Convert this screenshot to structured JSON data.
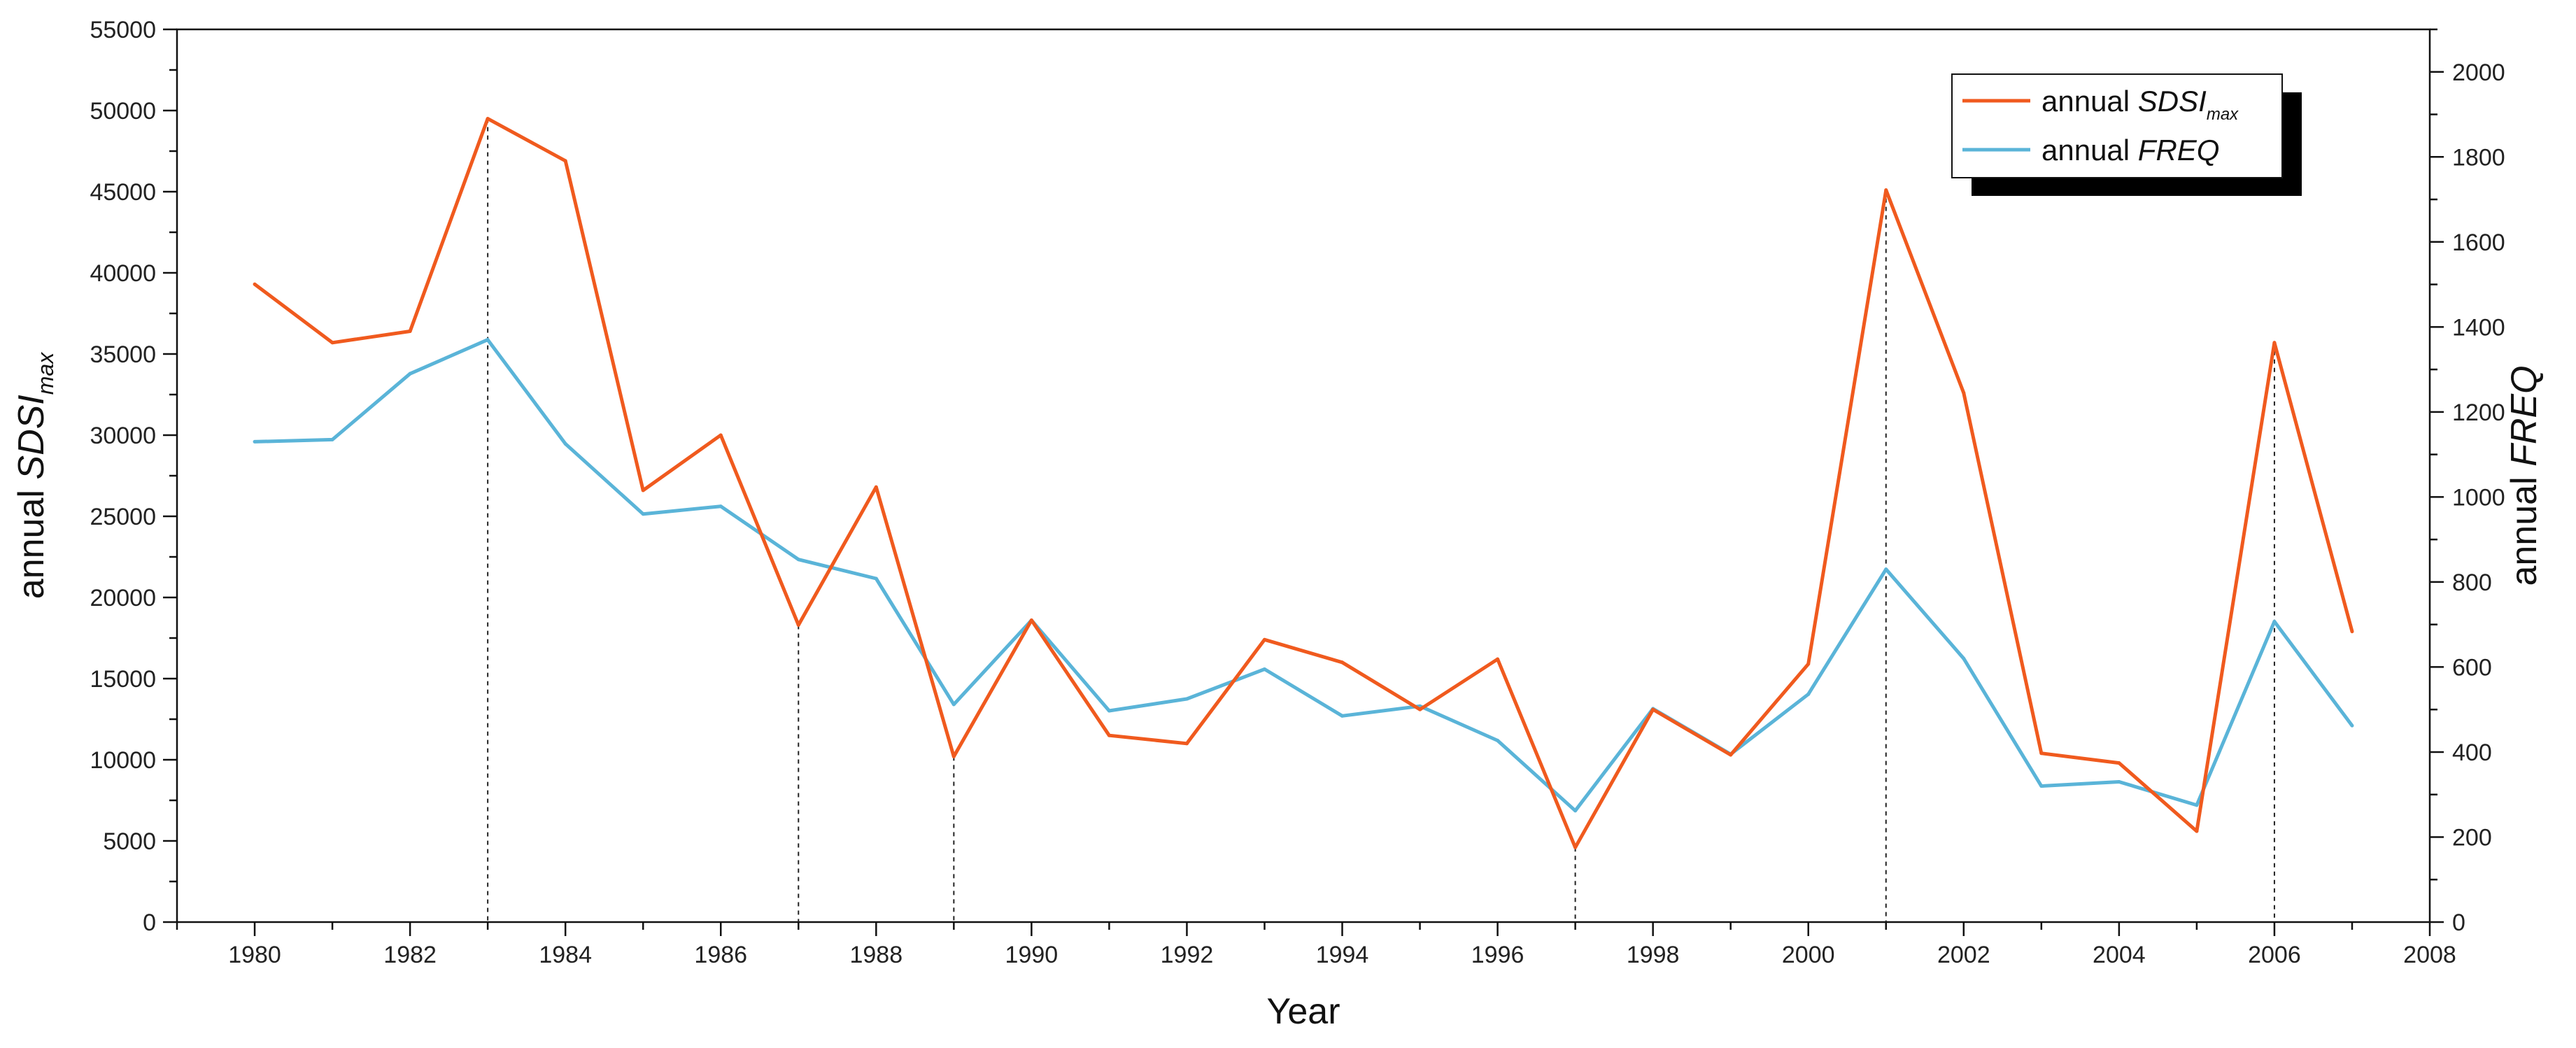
{
  "chart_data": {
    "type": "line",
    "x": [
      1980,
      1981,
      1982,
      1983,
      1984,
      1985,
      1986,
      1987,
      1988,
      1989,
      1990,
      1991,
      1992,
      1993,
      1994,
      1995,
      1996,
      1997,
      1998,
      1999,
      2000,
      2001,
      2002,
      2003,
      2004,
      2005,
      2006,
      2007
    ],
    "series": [
      {
        "name": "annual SDSI_max",
        "axis": "left",
        "color": "#f05a1e",
        "values": [
          39300,
          35700,
          36400,
          49500,
          46900,
          26600,
          30000,
          18300,
          26800,
          10200,
          18600,
          11500,
          11000,
          17400,
          16000,
          13100,
          16200,
          4600,
          13100,
          10300,
          15900,
          45100,
          32600,
          10400,
          9800,
          5600,
          35700,
          17900
        ]
      },
      {
        "name": "annual FREQ",
        "axis": "right",
        "color": "#5ab4d8",
        "values": [
          1130,
          1135,
          1290,
          1370,
          1125,
          960,
          978,
          853,
          808,
          512,
          710,
          497,
          525,
          595,
          485,
          508,
          427,
          262,
          502,
          395,
          536,
          830,
          620,
          320,
          330,
          275,
          707,
          462
        ]
      }
    ],
    "xlabel": "Year",
    "ylabel": {
      "prefix": "annual ",
      "main": "SDSI",
      "sub": "max"
    },
    "y2label": {
      "prefix": "annual ",
      "main": "FREQ"
    },
    "legend": [
      {
        "prefix": "annual ",
        "main": "SDSI",
        "sub": "max"
      },
      {
        "prefix": "annual ",
        "main": "FREQ"
      }
    ],
    "xlim": [
      1979,
      2008
    ],
    "ylim": [
      0,
      55000
    ],
    "y2lim": [
      0,
      2100
    ],
    "x_ticks": [
      "1980",
      "1982",
      "1984",
      "1986",
      "1988",
      "1990",
      "1992",
      "1994",
      "1996",
      "1998",
      "2000",
      "2002",
      "2004",
      "2006",
      "2008"
    ],
    "y_ticks": [
      "0",
      "5000",
      "10000",
      "15000",
      "20000",
      "25000",
      "30000",
      "35000",
      "40000",
      "45000",
      "50000",
      "55000"
    ],
    "y2_ticks": [
      "0",
      "200",
      "400",
      "600",
      "800",
      "1000",
      "1200",
      "1400",
      "1600",
      "1800",
      "2000"
    ],
    "vertical_markers": [
      1983,
      1987,
      1989,
      1997,
      2001,
      2006
    ],
    "legend_position": "top-right",
    "grid": false
  }
}
